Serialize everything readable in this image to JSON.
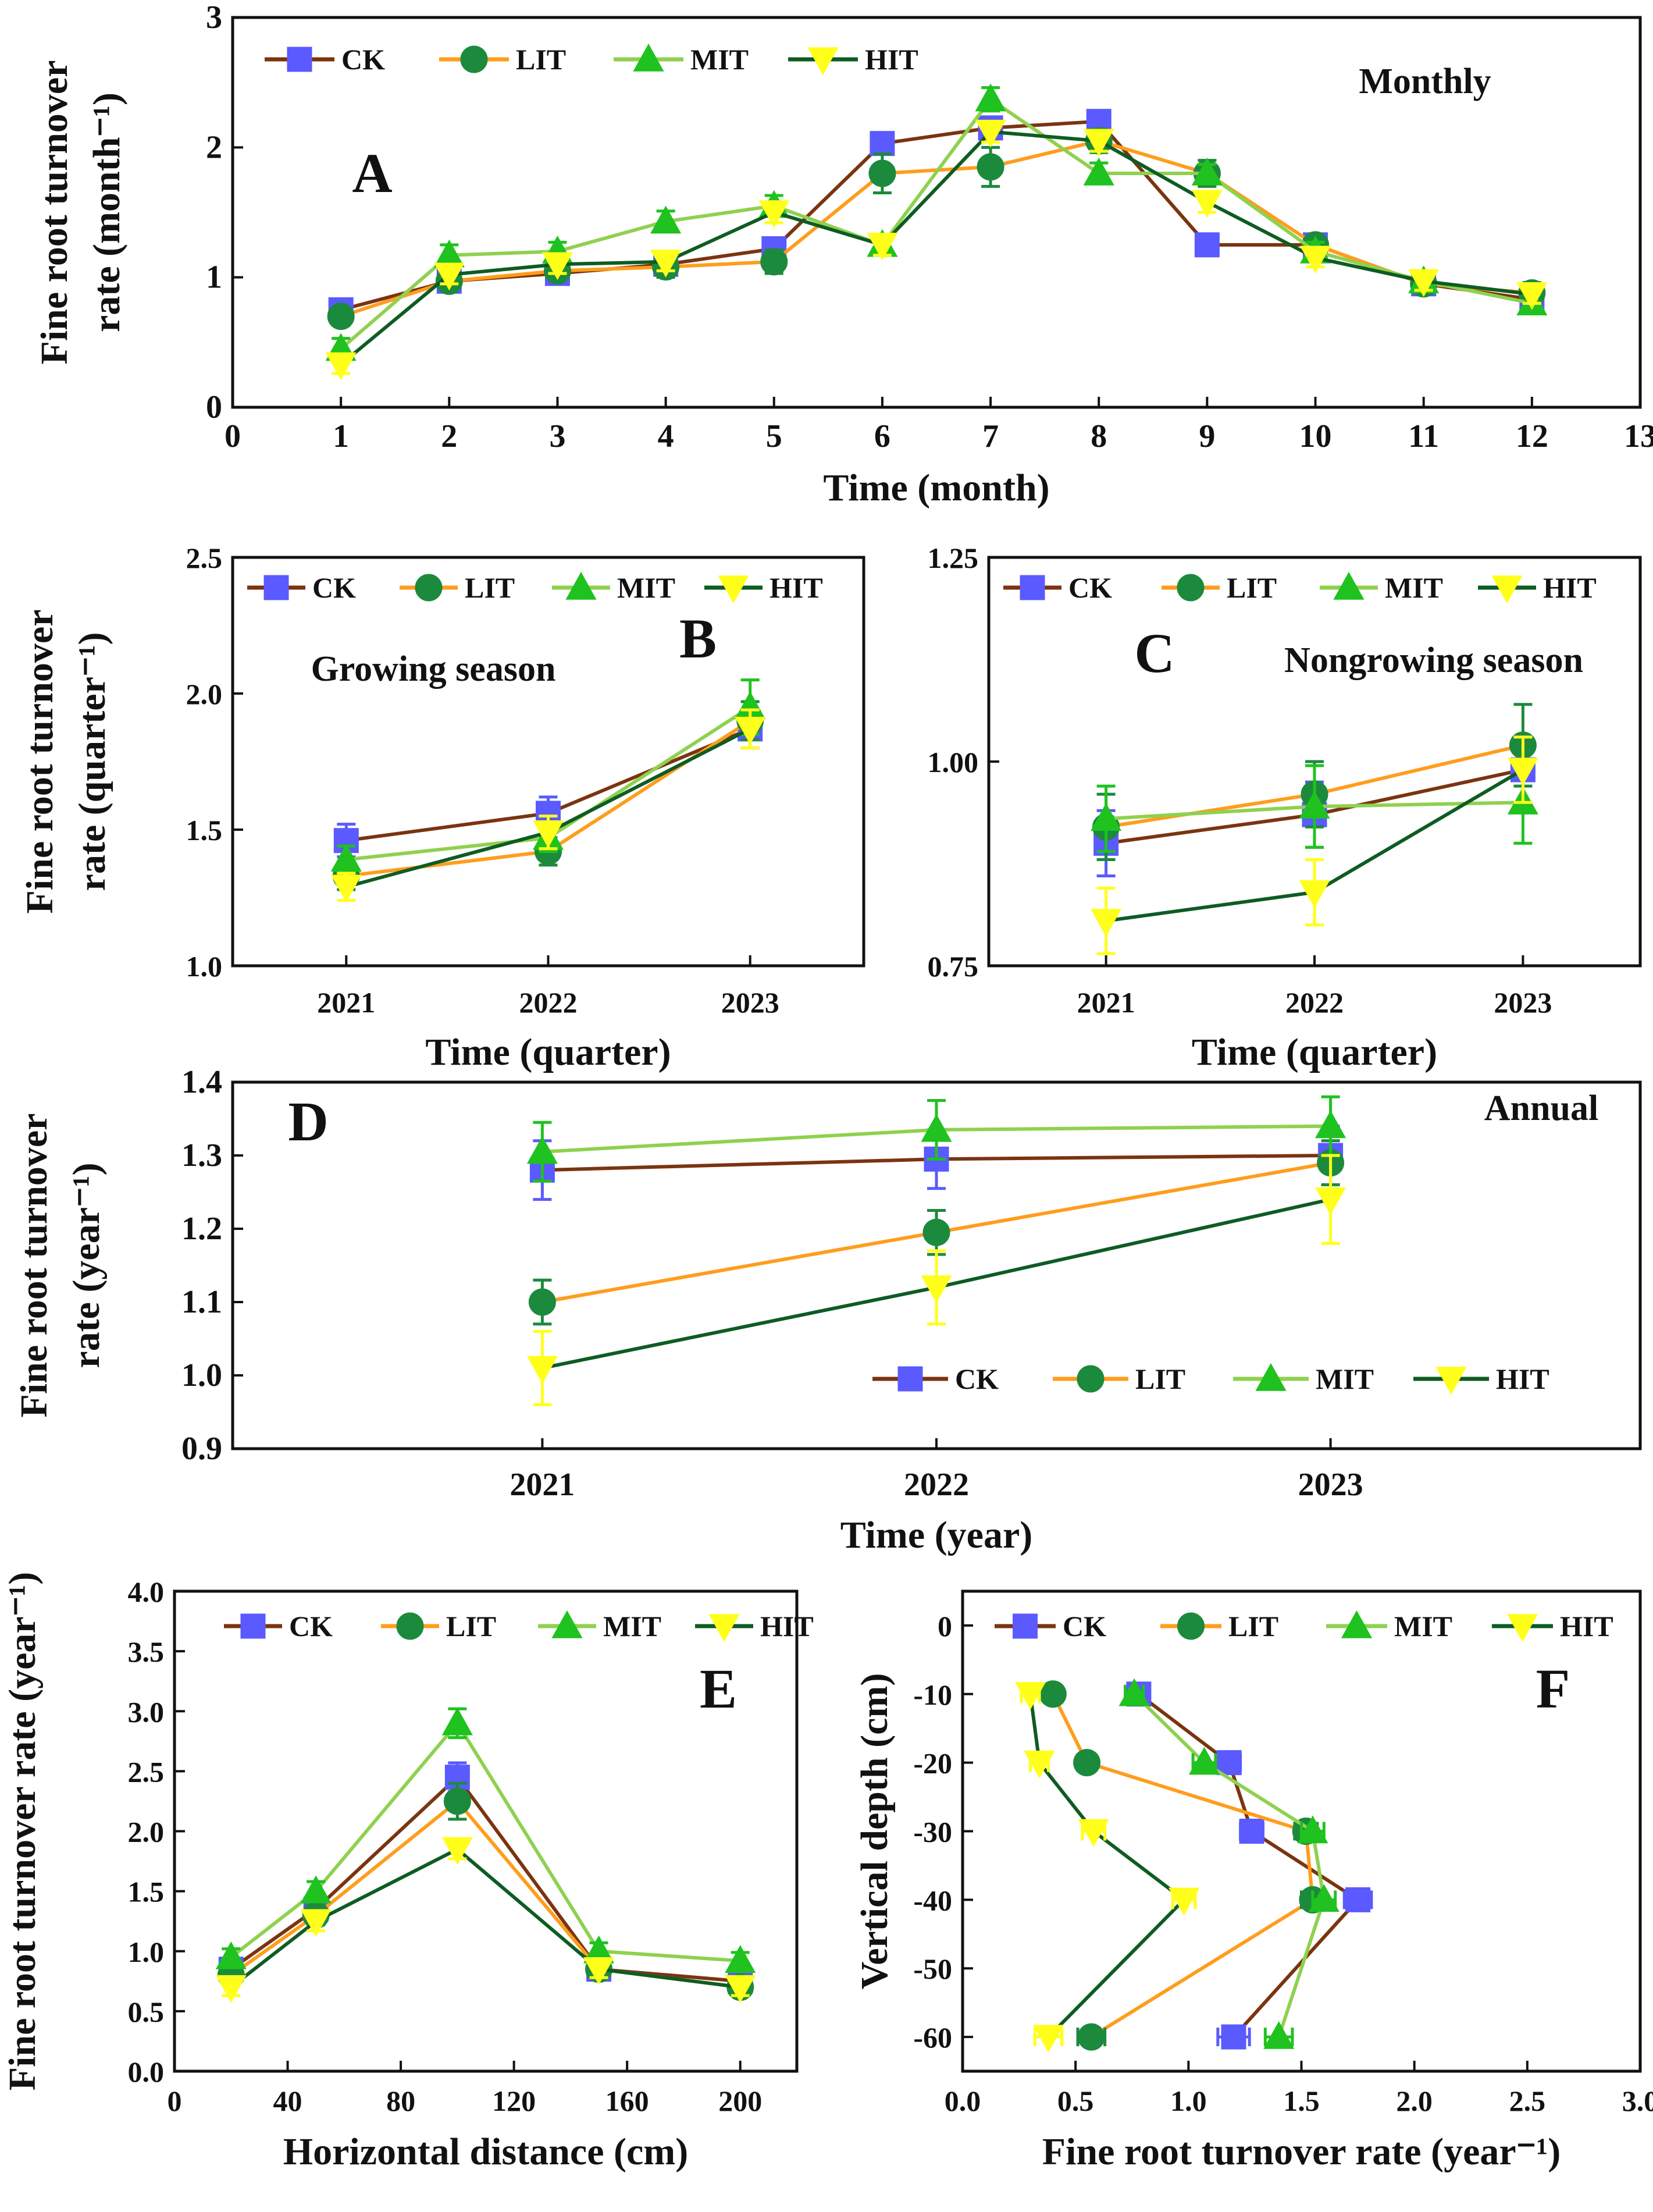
{
  "chart_data": [
    {
      "id": "A",
      "type": "line",
      "panel_label": "A",
      "annotation": "Monthly",
      "xlabel": "Time (month)",
      "ylabel_lines": [
        "Fine root turnover",
        "rate (month⁻¹)"
      ],
      "xlim": [
        0,
        13
      ],
      "ylim": [
        0,
        3
      ],
      "x_ticks": [
        0,
        1,
        2,
        3,
        4,
        5,
        6,
        7,
        8,
        9,
        10,
        11,
        12,
        13
      ],
      "y_ticks": [
        0,
        1,
        2,
        3
      ],
      "legend": {
        "placement": "top-left",
        "entries": [
          "CK",
          "LIT",
          "MIT",
          "HIT"
        ]
      },
      "series": [
        {
          "name": "CK",
          "x": [
            1,
            2,
            3,
            4,
            5,
            6,
            7,
            8,
            9,
            10,
            11,
            12
          ],
          "values": [
            0.75,
            0.97,
            1.03,
            1.1,
            1.22,
            2.03,
            2.15,
            2.2,
            1.25,
            1.25,
            0.95,
            0.83
          ],
          "err": [
            0.07,
            0.07,
            0.07,
            0.07,
            0.07,
            0.08,
            0.08,
            0.07,
            0.05,
            0.06,
            0.07,
            0.07
          ]
        },
        {
          "name": "LIT",
          "x": [
            1,
            2,
            3,
            4,
            5,
            6,
            7,
            8,
            9,
            10,
            11,
            12
          ],
          "values": [
            0.7,
            0.97,
            1.05,
            1.08,
            1.12,
            1.8,
            1.85,
            2.05,
            1.8,
            1.25,
            0.95,
            0.88
          ],
          "err": [
            0.07,
            0.07,
            0.07,
            0.08,
            0.09,
            0.15,
            0.15,
            0.09,
            0.1,
            0.07,
            0.07,
            0.08
          ]
        },
        {
          "name": "MIT",
          "x": [
            1,
            2,
            3,
            4,
            5,
            6,
            7,
            8,
            9,
            10,
            11,
            12
          ],
          "values": [
            0.45,
            1.17,
            1.2,
            1.43,
            1.55,
            1.25,
            2.37,
            1.8,
            1.8,
            1.2,
            0.97,
            0.8
          ],
          "err": [
            0.08,
            0.08,
            0.07,
            0.08,
            0.08,
            0.08,
            0.09,
            0.08,
            0.07,
            0.07,
            0.07,
            0.07
          ]
        },
        {
          "name": "HIT",
          "x": [
            1,
            2,
            3,
            4,
            5,
            6,
            7,
            8,
            9,
            10,
            11,
            12
          ],
          "values": [
            0.33,
            1.02,
            1.1,
            1.12,
            1.5,
            1.25,
            2.12,
            2.05,
            1.58,
            1.15,
            0.97,
            0.87
          ],
          "err": [
            0.07,
            0.07,
            0.07,
            0.07,
            0.08,
            0.08,
            0.08,
            0.08,
            0.08,
            0.07,
            0.07,
            0.07
          ]
        }
      ]
    },
    {
      "id": "B",
      "type": "line",
      "panel_label": "B",
      "annotation": "Growing season",
      "xlabel": "Time (quarter)",
      "ylabel_lines": [
        "Fine root turnover",
        "rate (quarter⁻¹)"
      ],
      "categories": [
        "2021",
        "2022",
        "2023"
      ],
      "ylim": [
        1.0,
        2.5
      ],
      "y_ticks": [
        "1.0",
        "1.5",
        "2.0",
        "2.5"
      ],
      "legend": {
        "placement": "top",
        "entries": [
          "CK",
          "LIT",
          "MIT",
          "HIT"
        ]
      },
      "series": [
        {
          "name": "CK",
          "values": [
            1.46,
            1.56,
            1.87
          ],
          "err": [
            0.06,
            0.06,
            0.07
          ]
        },
        {
          "name": "LIT",
          "values": [
            1.33,
            1.42,
            1.9
          ],
          "err": [
            0.05,
            0.05,
            0.07
          ]
        },
        {
          "name": "MIT",
          "values": [
            1.39,
            1.47,
            1.95
          ],
          "err": [
            0.05,
            0.05,
            0.1
          ]
        },
        {
          "name": "HIT",
          "values": [
            1.29,
            1.49,
            1.87
          ],
          "err": [
            0.05,
            0.06,
            0.07
          ]
        }
      ]
    },
    {
      "id": "C",
      "type": "line",
      "panel_label": "C",
      "annotation": "Nongrowing season",
      "xlabel": "Time (quarter)",
      "categories": [
        "2021",
        "2022",
        "2023"
      ],
      "ylim": [
        0.75,
        1.25
      ],
      "y_ticks": [
        "0.75",
        "1.00",
        "1.25"
      ],
      "legend": {
        "placement": "top",
        "entries": [
          "CK",
          "LIT",
          "MIT",
          "HIT"
        ]
      },
      "series": [
        {
          "name": "CK",
          "values": [
            0.9,
            0.935,
            0.99
          ],
          "err": [
            0.04,
            0.04,
            0.04
          ]
        },
        {
          "name": "LIT",
          "values": [
            0.92,
            0.96,
            1.02
          ],
          "err": [
            0.04,
            0.04,
            0.05
          ]
        },
        {
          "name": "MIT",
          "values": [
            0.93,
            0.945,
            0.95
          ],
          "err": [
            0.04,
            0.05,
            0.05
          ]
        },
        {
          "name": "HIT",
          "values": [
            0.805,
            0.84,
            0.99
          ],
          "err": [
            0.04,
            0.04,
            0.04
          ]
        }
      ]
    },
    {
      "id": "D",
      "type": "line",
      "panel_label": "D",
      "annotation": "Annual",
      "xlabel": "Time (year)",
      "ylabel_lines": [
        "Fine root turnover",
        "rate (year⁻¹)"
      ],
      "categories": [
        "2021",
        "2022",
        "2023"
      ],
      "ylim": [
        0.9,
        1.4
      ],
      "y_ticks": [
        "0.9",
        "1.0",
        "1.1",
        "1.2",
        "1.3",
        "1.4"
      ],
      "legend": {
        "placement": "bottom-right",
        "entries": [
          "CK",
          "LIT",
          "MIT",
          "HIT"
        ]
      },
      "series": [
        {
          "name": "CK",
          "values": [
            1.28,
            1.295,
            1.3
          ],
          "err": [
            0.04,
            0.04,
            0.04
          ]
        },
        {
          "name": "LIT",
          "values": [
            1.1,
            1.195,
            1.29
          ],
          "err": [
            0.03,
            0.03,
            0.03
          ]
        },
        {
          "name": "MIT",
          "values": [
            1.305,
            1.335,
            1.34
          ],
          "err": [
            0.04,
            0.04,
            0.04
          ]
        },
        {
          "name": "HIT",
          "values": [
            1.01,
            1.12,
            1.24
          ],
          "err": [
            0.05,
            0.05,
            0.06
          ]
        }
      ]
    },
    {
      "id": "E",
      "type": "line",
      "panel_label": "E",
      "xlabel": "Horizontal distance (cm)",
      "ylabel": "Fine root turnover rate (year⁻¹)",
      "xlim": [
        0,
        220
      ],
      "ylim": [
        0,
        4
      ],
      "x_ticks": [
        0,
        40,
        80,
        120,
        160,
        200
      ],
      "y_ticks": [
        "0.0",
        "0.5",
        "1.0",
        "1.5",
        "2.0",
        "2.5",
        "3.0",
        "3.5",
        "4.0"
      ],
      "legend": {
        "placement": "top",
        "entries": [
          "CK",
          "LIT",
          "MIT",
          "HIT"
        ]
      },
      "series": [
        {
          "name": "CK",
          "x": [
            20,
            50,
            100,
            150,
            200
          ],
          "values": [
            0.85,
            1.35,
            2.45,
            0.85,
            0.75
          ],
          "err": [
            0.07,
            0.08,
            0.12,
            0.07,
            0.07
          ]
        },
        {
          "name": "LIT",
          "x": [
            20,
            50,
            100,
            150,
            200
          ],
          "values": [
            0.8,
            1.3,
            2.25,
            0.85,
            0.7
          ],
          "err": [
            0.07,
            0.08,
            0.15,
            0.07,
            0.07
          ]
        },
        {
          "name": "MIT",
          "x": [
            20,
            50,
            100,
            150,
            200
          ],
          "values": [
            0.95,
            1.5,
            2.9,
            1.0,
            0.92
          ],
          "err": [
            0.07,
            0.08,
            0.12,
            0.07,
            0.07
          ]
        },
        {
          "name": "HIT",
          "x": [
            20,
            50,
            100,
            150,
            200
          ],
          "values": [
            0.7,
            1.25,
            1.85,
            0.85,
            0.7
          ],
          "err": [
            0.07,
            0.08,
            0.08,
            0.07,
            0.07
          ]
        }
      ]
    },
    {
      "id": "F",
      "type": "line",
      "panel_label": "F",
      "xlabel": "Fine root turnover rate (year⁻¹)",
      "ylabel": "Vertical depth (cm)",
      "xlim": [
        0,
        3
      ],
      "ylim": [
        -65,
        5
      ],
      "x_ticks": [
        "0.0",
        "0.5",
        "1.0",
        "1.5",
        "2.0",
        "2.5",
        "3.0"
      ],
      "y_ticks": [
        0,
        -10,
        -20,
        -30,
        -40,
        -50,
        -60
      ],
      "legend": {
        "placement": "top",
        "entries": [
          "CK",
          "LIT",
          "MIT",
          "HIT"
        ]
      },
      "series": [
        {
          "name": "CK",
          "depth": [
            -10,
            -20,
            -30,
            -40,
            -60
          ],
          "values": [
            0.78,
            1.18,
            1.28,
            1.75,
            1.2
          ],
          "err": [
            0.04,
            0.05,
            0.05,
            0.06,
            0.07
          ]
        },
        {
          "name": "LIT",
          "depth": [
            -10,
            -20,
            -30,
            -40,
            -60
          ],
          "values": [
            0.4,
            0.55,
            1.52,
            1.55,
            0.57
          ],
          "err": [
            0.04,
            0.04,
            0.05,
            0.05,
            0.06
          ]
        },
        {
          "name": "MIT",
          "depth": [
            -10,
            -20,
            -30,
            -40,
            -60
          ],
          "values": [
            0.76,
            1.07,
            1.55,
            1.6,
            1.4
          ],
          "err": [
            0.04,
            0.05,
            0.05,
            0.05,
            0.06
          ]
        },
        {
          "name": "HIT",
          "depth": [
            -10,
            -20,
            -30,
            -40,
            -60
          ],
          "values": [
            0.3,
            0.34,
            0.58,
            0.98,
            0.38
          ],
          "err": [
            0.04,
            0.04,
            0.05,
            0.05,
            0.06
          ]
        }
      ]
    }
  ],
  "series_styles": {
    "CK": {
      "line": "#7a3410",
      "marker": "square",
      "fill": "#5a5aff",
      "err": "#5a5aff"
    },
    "LIT": {
      "line": "#ff9d1c",
      "marker": "circle",
      "fill": "#1c8a3c",
      "err": "#1c8a3c"
    },
    "MIT": {
      "line": "#8fd14f",
      "marker": "triangle",
      "fill": "#1fc21f",
      "err": "#1fc21f"
    },
    "HIT": {
      "line": "#0e5c22",
      "marker": "tri-down",
      "fill": "#ffff1a",
      "err": "#ffff1a"
    }
  }
}
